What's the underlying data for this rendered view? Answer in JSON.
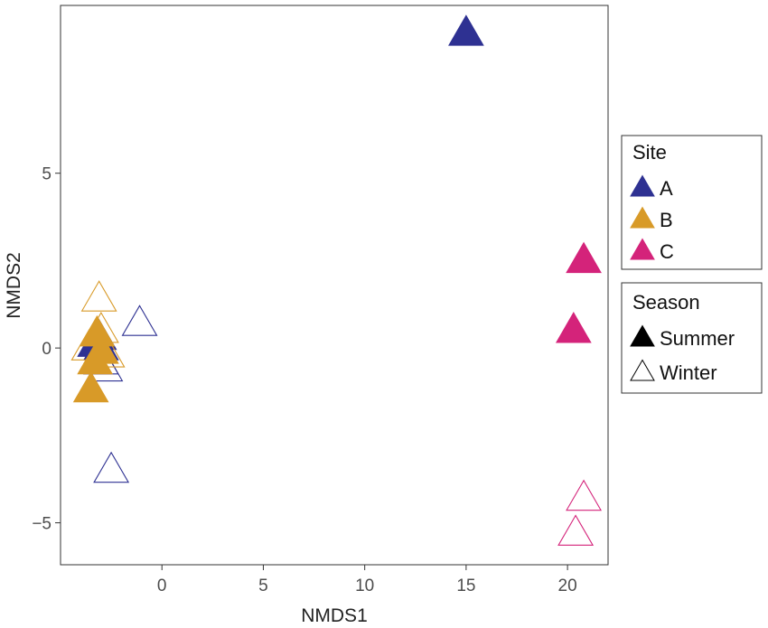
{
  "chart_data": {
    "type": "scatter",
    "title": "",
    "xlabel": "NMDS1",
    "ylabel": "NMDS2",
    "xlim": [
      -5,
      22
    ],
    "ylim": [
      -6.2,
      9.8
    ],
    "xticks": [
      0,
      5,
      10,
      15,
      20
    ],
    "yticks": [
      -5,
      0,
      5
    ],
    "xtick_labels": [
      "0",
      "5",
      "10",
      "15",
      "20"
    ],
    "ytick_labels": [
      "−5",
      "0",
      "5"
    ],
    "grid": false,
    "colors": {
      "A": "#2e3192",
      "B": "#d89a28",
      "C": "#d4237a",
      "season_key": "#000000"
    },
    "points": [
      {
        "site": "A",
        "season": "Summer",
        "x": 15.0,
        "y": 9.0
      },
      {
        "site": "A",
        "season": "Summer",
        "x": -3.3,
        "y": 0.1
      },
      {
        "site": "A",
        "season": "Summer",
        "x": -3.1,
        "y": 0.3
      },
      {
        "site": "A",
        "season": "Summer",
        "x": -3.0,
        "y": 0.0
      },
      {
        "site": "A",
        "season": "Winter",
        "x": -1.1,
        "y": 0.7
      },
      {
        "site": "A",
        "season": "Winter",
        "x": -2.5,
        "y": -3.5
      },
      {
        "site": "A",
        "season": "Winter",
        "x": -3.0,
        "y": -0.4
      },
      {
        "site": "A",
        "season": "Winter",
        "x": -2.8,
        "y": -0.6
      },
      {
        "site": "B",
        "season": "Summer",
        "x": -3.5,
        "y": -1.2
      },
      {
        "site": "B",
        "season": "Summer",
        "x": -3.3,
        "y": -0.4
      },
      {
        "site": "B",
        "season": "Summer",
        "x": -3.0,
        "y": -0.1
      },
      {
        "site": "B",
        "season": "Summer",
        "x": -3.2,
        "y": 0.4
      },
      {
        "site": "B",
        "season": "Winter",
        "x": -3.1,
        "y": 1.4
      },
      {
        "site": "B",
        "season": "Winter",
        "x": -3.0,
        "y": 0.5
      },
      {
        "site": "B",
        "season": "Winter",
        "x": -3.6,
        "y": 0.0
      },
      {
        "site": "B",
        "season": "Winter",
        "x": -2.7,
        "y": -0.2
      },
      {
        "site": "C",
        "season": "Summer",
        "x": 20.8,
        "y": 2.5
      },
      {
        "site": "C",
        "season": "Summer",
        "x": 20.3,
        "y": 0.5
      },
      {
        "site": "C",
        "season": "Winter",
        "x": 20.8,
        "y": -4.3
      },
      {
        "site": "C",
        "season": "Winter",
        "x": 20.4,
        "y": -5.3
      }
    ],
    "legend_site": {
      "title": "Site",
      "entries": [
        {
          "key": "A",
          "label": "A"
        },
        {
          "key": "B",
          "label": "B"
        },
        {
          "key": "C",
          "label": "C"
        }
      ]
    },
    "legend_season": {
      "title": "Season",
      "entries": [
        {
          "key": "Summer",
          "label": "Summer",
          "filled": true
        },
        {
          "key": "Winter",
          "label": "Winter",
          "filled": false
        }
      ]
    },
    "legend_position": "right"
  }
}
